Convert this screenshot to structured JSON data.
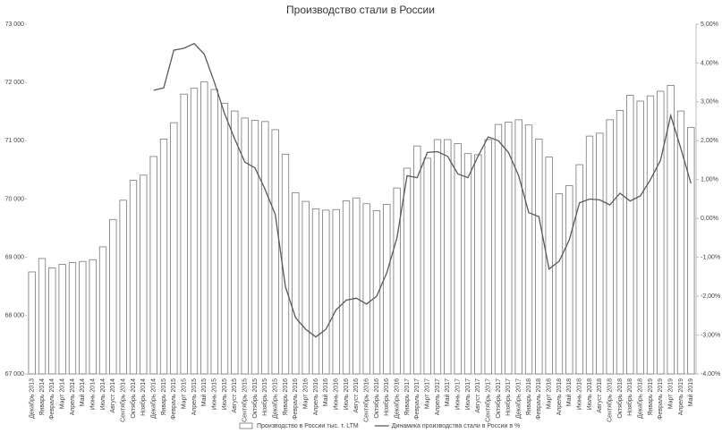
{
  "chart_data": {
    "type": "bar_line",
    "title": "Производство стали в России",
    "categories": [
      "Декабрь 2013",
      "Январь 2014",
      "Февраль 2014",
      "Март 2014",
      "Апрель 2014",
      "Май 2014",
      "Июнь 2014",
      "Июль 2014",
      "Август 2014",
      "Сентябрь 2014",
      "Октябрь 2014",
      "Ноябрь 2014",
      "Декабрь 2014",
      "Январь 2015",
      "Февраль 2015",
      "Март 2015",
      "Апрель 2015",
      "Май 2015",
      "Июнь 2015",
      "Июль 2015",
      "Август 2015",
      "Сентябрь 2015",
      "Октябрь 2015",
      "Ноябрь 2015",
      "Декабрь 2015",
      "Январь 2016",
      "Февраль 2016",
      "Март 2016",
      "Апрель 2016",
      "Май 2016",
      "Июнь 2016",
      "Июль 2016",
      "Август 2016",
      "Сентябрь 2016",
      "Октябрь 2016",
      "Ноябрь 2016",
      "Декабрь 2016",
      "Январь 2017",
      "Февраль 2017",
      "Март 2017",
      "Апрель 2017",
      "Май 2017",
      "Июнь 2017",
      "Июль 2017",
      "Август 2017",
      "Сентябрь 2017",
      "Октябрь 2017",
      "Ноябрь 2017",
      "Декабрь 2017",
      "Январь 2018",
      "Февраль 2018",
      "Март 2018",
      "Апрель 2018",
      "Май 2018",
      "Июнь 2018",
      "Июль 2018",
      "Август 2018",
      "Сентябрь 2018",
      "Октябрь 2018",
      "Ноябрь 2018",
      "Декабрь 2018",
      "Январь 2019",
      "Февраль 2019",
      "Март 2019",
      "Апрель 2019",
      "Май 2019"
    ],
    "series": [
      {
        "name": "Производство в России тыс. т. LTM",
        "color": "#ffffff",
        "stroke": "#777777",
        "values": [
          68750,
          68980,
          68820,
          68880,
          68910,
          68930,
          68960,
          69180,
          69650,
          69980,
          70320,
          70410,
          70730,
          71030,
          71310,
          71800,
          71900,
          72010,
          71880,
          71640,
          71510,
          71390,
          71350,
          71330,
          71190,
          70770,
          70110,
          69960,
          69830,
          69810,
          69820,
          69970,
          70020,
          69920,
          69800,
          69910,
          70190,
          70530,
          70910,
          70700,
          71020,
          71020,
          70950,
          70780,
          70760,
          71020,
          71280,
          71320,
          71360,
          71270,
          71030,
          70720,
          70090,
          70230,
          70590,
          71080,
          71130,
          71360,
          71520,
          71780,
          71680,
          71770,
          71850,
          71950,
          71510,
          71230
        ]
      },
      {
        "name": "Динамика производства стали в России в %",
        "color": "#595959",
        "axis": "y2",
        "values": [
          null,
          null,
          null,
          null,
          null,
          null,
          null,
          null,
          null,
          null,
          null,
          null,
          3.3,
          3.36,
          4.33,
          4.38,
          4.5,
          4.23,
          3.5,
          2.7,
          2.05,
          1.45,
          1.3,
          0.75,
          0.1,
          -1.75,
          -2.55,
          -2.85,
          -3.05,
          -2.85,
          -2.35,
          -2.1,
          -2.05,
          -2.2,
          -2.0,
          -1.4,
          -0.5,
          1.1,
          1.05,
          1.7,
          1.72,
          1.6,
          1.15,
          1.05,
          1.6,
          2.1,
          2.0,
          1.7,
          1.1,
          0.15,
          0.05,
          -1.3,
          -1.1,
          -0.55,
          0.4,
          0.5,
          0.48,
          0.35,
          0.65,
          0.45,
          0.58,
          1.0,
          1.5,
          2.65,
          1.8,
          0.9
        ]
      }
    ],
    "ylim": [
      67000,
      73000
    ],
    "yticks": [
      {
        "value": 67000,
        "label": "67 000"
      },
      {
        "value": 68000,
        "label": "68 000"
      },
      {
        "value": 69000,
        "label": "69 000"
      },
      {
        "value": 70000,
        "label": "70 000"
      },
      {
        "value": 71000,
        "label": "71 000"
      },
      {
        "value": 72000,
        "label": "72 000"
      },
      {
        "value": 73000,
        "label": "73 000"
      }
    ],
    "y2lim": [
      -4,
      5
    ],
    "y2ticks": [
      {
        "value": -4,
        "label": "-4,00%"
      },
      {
        "value": -3,
        "label": "-3,00%"
      },
      {
        "value": -2,
        "label": "-2,00%"
      },
      {
        "value": -1,
        "label": "-1,00%"
      },
      {
        "value": 0,
        "label": "0,00%"
      },
      {
        "value": 1,
        "label": "1,00%"
      },
      {
        "value": 2,
        "label": "2,00%"
      },
      {
        "value": 3,
        "label": "3,00%"
      },
      {
        "value": 4,
        "label": "4,00%"
      },
      {
        "value": 5,
        "label": "5,00%"
      }
    ],
    "legend": "bottom"
  }
}
